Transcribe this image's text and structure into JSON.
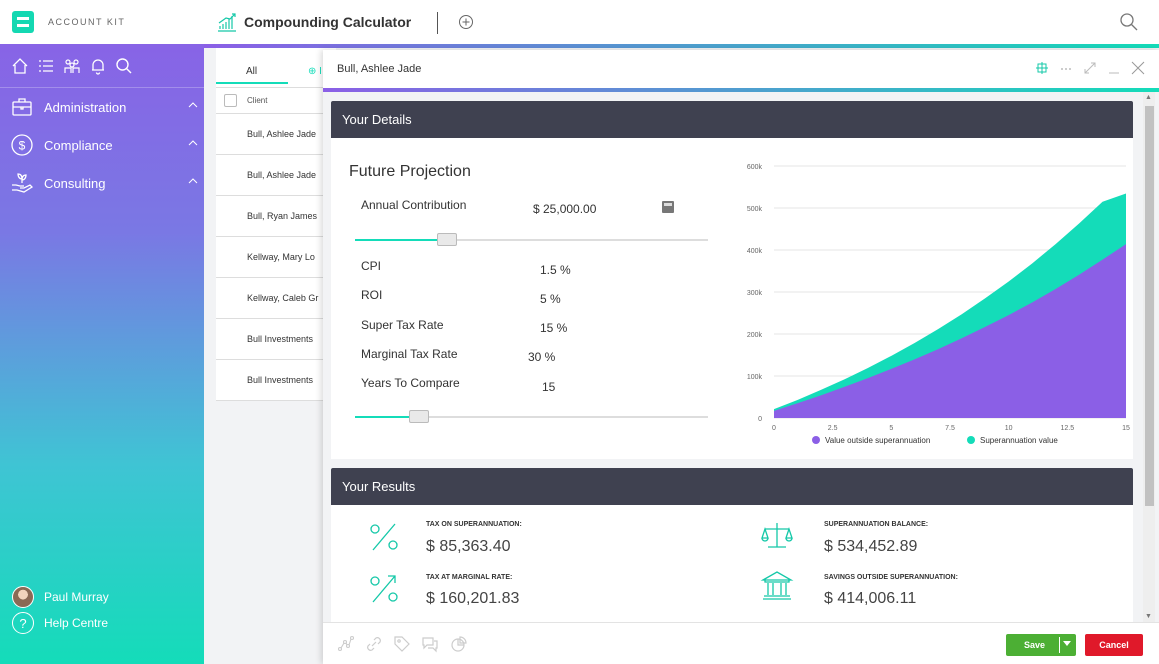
{
  "brand": {
    "name": "ACCOUNT KIT",
    "accent": "#14dcb9",
    "purple": "#8b5fe6"
  },
  "sidebar": {
    "icons": [
      "home-icon",
      "list-icon",
      "people-icon",
      "bell-icon",
      "search-icon"
    ],
    "items": [
      {
        "label": "Administration",
        "icon": "briefcase-icon"
      },
      {
        "label": "Compliance",
        "icon": "dollar-circle-icon"
      },
      {
        "label": "Consulting",
        "icon": "hand-plant-icon"
      }
    ],
    "user": {
      "name": "Paul Murray"
    },
    "help": {
      "label": "Help Centre"
    }
  },
  "header": {
    "title": "Compounding Calculator"
  },
  "client_list": {
    "tab_all": "All",
    "tab_add": "⊕ I",
    "column": "Client",
    "rows": [
      "Bull, Ashlee Jade",
      "Bull, Ashlee Jade",
      "Bull, Ryan James",
      "Kellway, Mary Lo",
      "Kellway, Caleb Gr",
      "Bull Investments",
      "Bull Investments"
    ]
  },
  "modal": {
    "title": "Bull, Ashlee Jade",
    "details": {
      "header": "Your Details",
      "projection_title": "Future Projection",
      "annual_contribution": {
        "label": "Annual Contribution",
        "value": "$ 25,000.00",
        "slider": 0.26
      },
      "cpi": {
        "label": "CPI",
        "value": "1.5 %"
      },
      "roi": {
        "label": "ROI",
        "value": "5 %"
      },
      "super_tax": {
        "label": "Super Tax Rate",
        "value": "15 %"
      },
      "marginal_tax": {
        "label": "Marginal Tax Rate",
        "value": "30 %"
      },
      "years": {
        "label": "Years To Compare",
        "value": "15",
        "slider": 0.18
      }
    },
    "results": {
      "header": "Your Results",
      "tax_on_super": {
        "label": "TAX ON SUPERANNUATION:",
        "value": "$ 85,363.40"
      },
      "tax_marginal": {
        "label": "TAX AT MARGINAL RATE:",
        "value": "$ 160,201.83"
      },
      "super_balance": {
        "label": "SUPERANNUATION BALANCE:",
        "value": "$ 534,452.89"
      },
      "savings_outside": {
        "label": "SAVINGS OUTSIDE SUPERANNUATION:",
        "value": "$ 414,006.11"
      }
    },
    "footer": {
      "save": "Save",
      "cancel": "Cancel"
    }
  },
  "chart_data": {
    "type": "area",
    "x": [
      0,
      1,
      2,
      3,
      4,
      5,
      6,
      7,
      8,
      9,
      10,
      11,
      12,
      13,
      14,
      15
    ],
    "x_ticks": [
      "0",
      "2.5",
      "5",
      "7.5",
      "10",
      "12.5",
      "15"
    ],
    "y_ticks": [
      "0",
      "100k",
      "200k",
      "300k",
      "400k",
      "500k",
      "600k"
    ],
    "ylim": [
      0,
      600000
    ],
    "xlim": [
      0,
      15
    ],
    "series": [
      {
        "name": "Value outside superannuation",
        "color": "#8b5fe6",
        "values": [
          17000,
          35000,
          54000,
          74000,
          95000,
          117000,
          140000,
          164000,
          190000,
          217000,
          245000,
          275000,
          307000,
          341000,
          377000,
          414006
        ]
      },
      {
        "name": "Superannuation value",
        "color": "#14dcb9",
        "values": [
          21000,
          43000,
          67000,
          92000,
          119000,
          148000,
          179000,
          212000,
          247000,
          285000,
          325000,
          368000,
          414000,
          463000,
          515000,
          534453
        ]
      }
    ],
    "legend": "bottom"
  }
}
